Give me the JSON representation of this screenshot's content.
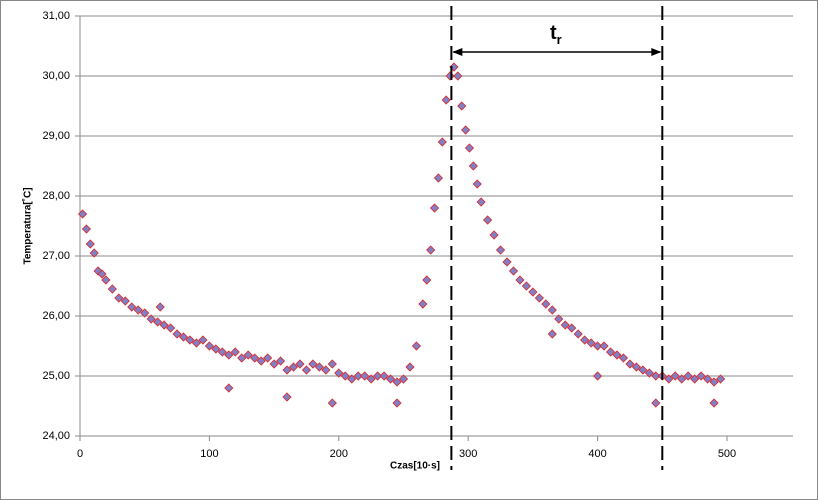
{
  "chart_data": {
    "type": "scatter",
    "x_label": "Czas[10·s]",
    "y_label": "Temperatura[˚C]",
    "annotation": "t",
    "annotation_sub": "r",
    "vlines": [
      287,
      450
    ],
    "x": [
      2,
      5,
      8,
      11,
      14,
      17,
      20,
      25,
      30,
      35,
      40,
      45,
      50,
      55,
      60,
      65,
      70,
      75,
      80,
      85,
      90,
      95,
      100,
      105,
      110,
      115,
      120,
      125,
      130,
      135,
      140,
      145,
      150,
      155,
      160,
      165,
      170,
      175,
      180,
      185,
      190,
      195,
      200,
      205,
      210,
      215,
      220,
      225,
      230,
      235,
      240,
      245,
      250,
      255,
      260,
      265,
      268,
      271,
      274,
      277,
      280,
      283,
      286,
      289,
      292,
      295,
      298,
      301,
      304,
      307,
      310,
      315,
      320,
      325,
      330,
      335,
      340,
      345,
      350,
      355,
      360,
      365,
      370,
      375,
      380,
      385,
      390,
      395,
      400,
      405,
      410,
      415,
      420,
      425,
      430,
      435,
      440,
      445,
      450,
      455,
      460,
      465,
      470,
      475,
      480,
      485,
      490,
      495,
      115,
      160,
      195,
      245,
      62,
      400,
      445,
      490,
      365
    ],
    "series": [
      {
        "name": "Temperatura",
        "color": "#8080c8",
        "edge": "#e02020",
        "values": [
          27.7,
          27.45,
          27.2,
          27.05,
          26.75,
          26.7,
          26.6,
          26.45,
          26.3,
          26.25,
          26.15,
          26.1,
          26.05,
          25.95,
          25.9,
          25.85,
          25.8,
          25.7,
          25.65,
          25.6,
          25.55,
          25.6,
          25.5,
          25.45,
          25.4,
          25.35,
          25.4,
          25.3,
          25.35,
          25.3,
          25.25,
          25.3,
          25.2,
          25.25,
          25.1,
          25.15,
          25.2,
          25.1,
          25.2,
          25.15,
          25.1,
          25.2,
          25.05,
          25.0,
          24.95,
          25.0,
          25.0,
          24.95,
          25.0,
          25.0,
          24.95,
          24.9,
          24.95,
          25.15,
          25.5,
          26.2,
          26.6,
          27.1,
          27.8,
          28.3,
          28.9,
          29.6,
          30.0,
          30.15,
          30.0,
          29.5,
          29.1,
          28.8,
          28.5,
          28.2,
          27.9,
          27.6,
          27.35,
          27.1,
          26.9,
          26.75,
          26.6,
          26.5,
          26.4,
          26.3,
          26.2,
          26.1,
          25.95,
          25.85,
          25.8,
          25.7,
          25.6,
          25.55,
          25.5,
          25.5,
          25.4,
          25.35,
          25.3,
          25.2,
          25.15,
          25.1,
          25.05,
          25.0,
          25.0,
          24.95,
          25.0,
          24.95,
          25.0,
          24.95,
          25.0,
          24.95,
          24.9,
          24.95,
          24.8,
          24.65,
          24.55,
          24.55,
          26.15,
          25.0,
          24.55,
          24.55,
          25.7
        ]
      }
    ],
    "xlim": [
      0,
      551
    ],
    "ylim": [
      24,
      31
    ],
    "xticks": [
      0,
      100,
      200,
      300,
      400,
      500
    ],
    "yticks": [
      {
        "value": 24,
        "label": "24,00"
      },
      {
        "value": 25,
        "label": "25,00"
      },
      {
        "value": 26,
        "label": "26,00"
      },
      {
        "value": 27,
        "label": "27,00"
      },
      {
        "value": 28,
        "label": "28,00"
      },
      {
        "value": 29,
        "label": "29,00"
      },
      {
        "value": 30,
        "label": "30,00"
      },
      {
        "value": 31,
        "label": "31,00"
      }
    ],
    "grid": true
  }
}
